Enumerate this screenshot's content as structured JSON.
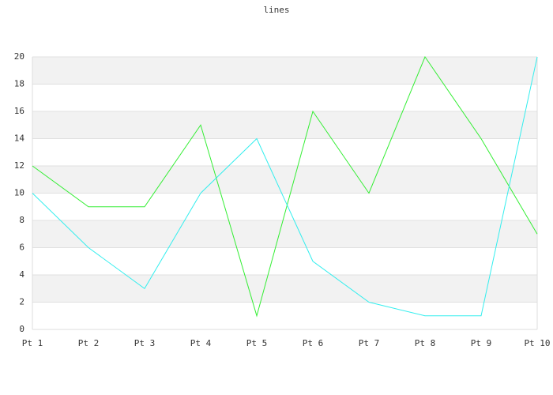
{
  "chart_data": {
    "type": "line",
    "title": "lines",
    "categories": [
      "Pt 1",
      "Pt 2",
      "Pt 3",
      "Pt 4",
      "Pt 5",
      "Pt 6",
      "Pt 7",
      "Pt 8",
      "Pt 9",
      "Pt 10"
    ],
    "series": [
      {
        "color": "#33ee33",
        "values": [
          12,
          9,
          9,
          15,
          1,
          16,
          10,
          20,
          14,
          7
        ]
      },
      {
        "color": "#33eeee",
        "values": [
          10,
          6,
          3,
          10,
          14,
          5,
          2,
          1,
          1,
          20
        ]
      }
    ],
    "ylim": [
      0,
      20
    ],
    "yticks": [
      0,
      2,
      4,
      6,
      8,
      10,
      12,
      14,
      16,
      18,
      20
    ],
    "grid": true
  }
}
